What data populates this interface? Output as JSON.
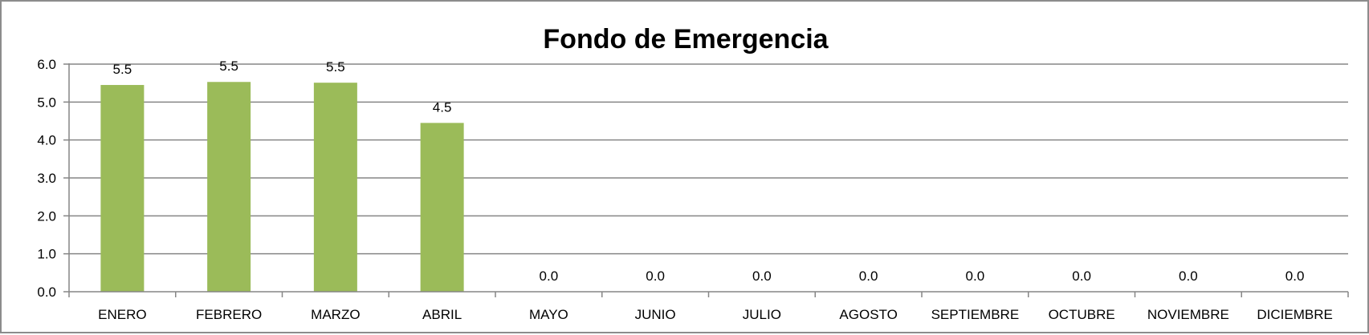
{
  "chart_data": {
    "type": "bar",
    "title": "Fondo de Emergencia",
    "categories": [
      "ENERO",
      "FEBRERO",
      "MARZO",
      "ABRIL",
      "MAYO",
      "JUNIO",
      "JULIO",
      "AGOSTO",
      "SEPTIEMBRE",
      "OCTUBRE",
      "NOVIEMBRE",
      "DICIEMBRE"
    ],
    "values": [
      5.45,
      5.53,
      5.51,
      4.45,
      0,
      0,
      0,
      0,
      0,
      0,
      0,
      0
    ],
    "data_labels": [
      "5.5",
      "5.5",
      "5.5",
      "4.5",
      "0.0",
      "0.0",
      "0.0",
      "0.0",
      "0.0",
      "0.0",
      "0.0",
      "0.0"
    ],
    "y_ticks": [
      "0.0",
      "1.0",
      "2.0",
      "3.0",
      "4.0",
      "5.0",
      "6.0"
    ],
    "ylim": [
      0,
      6
    ],
    "xlabel": "",
    "ylabel": "",
    "grid": true,
    "legend": "none",
    "bar_color": "#9bbb59",
    "gridline_color": "#868686"
  }
}
